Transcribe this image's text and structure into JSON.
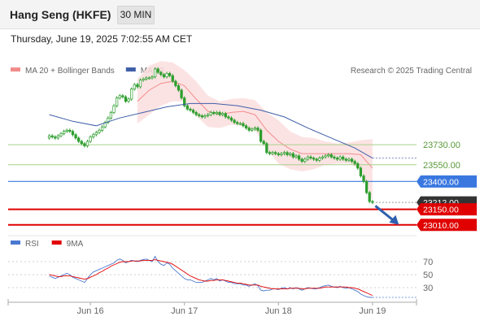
{
  "header": {
    "title": "Hang Seng (HKFE)",
    "timeframe": "30 MIN"
  },
  "datetime": "Thursday, June 19, 2025 7:02:55 AM CET",
  "credit": "Research © 2025 Trading Central",
  "colors": {
    "bollinger": "#f28c8c",
    "bollinger_fill": "#fbdede",
    "ma50": "#3f5fa8",
    "support_green": "#a8d08a",
    "pivot_blue": "#3a78e0",
    "target_red": "#e00000",
    "last_price": "#333333",
    "rsi": "#4a78d0",
    "rsi_ma": "#e00000",
    "candle": "#2e9e2e"
  },
  "chart_data": [
    {
      "type": "candlestick",
      "title": "",
      "legend": [
        {
          "name": "MA 20 + Bollinger Bands",
          "color": "#f28c8c"
        },
        {
          "name": "MA 50",
          "color": "#3f5fa8"
        }
      ],
      "legend_position": "top-left",
      "x_ticks": [
        {
          "label": "Jun 16",
          "t": 14
        },
        {
          "label": "Jun 17",
          "t": 46
        },
        {
          "label": "Jun 18",
          "t": 78
        },
        {
          "label": "Jun 19",
          "t": 110
        }
      ],
      "t_range": [
        -14,
        125
      ],
      "y_range": [
        22950,
        24300
      ],
      "levels": [
        {
          "label": "23730.00",
          "value": 23730,
          "kind": "resistance"
        },
        {
          "label": "23550.00",
          "value": 23550,
          "kind": "resistance"
        },
        {
          "label": "23400.00",
          "value": 23400,
          "kind": "pivot"
        },
        {
          "label": "23212.00",
          "value": 23212,
          "kind": "last"
        },
        {
          "label": "23150.00",
          "value": 23150,
          "kind": "target"
        },
        {
          "label": "23010.00",
          "value": 23010,
          "kind": "target"
        }
      ],
      "close": [
        23810,
        23800,
        23790,
        23810,
        23830,
        23850,
        23860,
        23850,
        23820,
        23790,
        23760,
        23740,
        23720,
        23760,
        23800,
        23820,
        23840,
        23860,
        23890,
        23930,
        23970,
        24020,
        24080,
        24150,
        24170,
        24160,
        24120,
        24140,
        24230,
        24270,
        24250,
        24310,
        24320,
        24330,
        24330,
        24340,
        24410,
        24380,
        24360,
        24340,
        24370,
        24350,
        24300,
        24260,
        24220,
        24150,
        24080,
        24050,
        24040,
        24020,
        24000,
        23990,
        23980,
        23990,
        24000,
        24020,
        24010,
        24020,
        24000,
        24010,
        23980,
        23970,
        23950,
        23930,
        23920,
        23920,
        23900,
        23880,
        23860,
        23870,
        23880,
        23860,
        23760,
        23740,
        23660,
        23650,
        23660,
        23650,
        23640,
        23650,
        23660,
        23640,
        23650,
        23620,
        23630,
        23600,
        23580,
        23600,
        23620,
        23610,
        23600,
        23590,
        23610,
        23620,
        23630,
        23640,
        23620,
        23610,
        23600,
        23620,
        23600,
        23590,
        23600,
        23580,
        23560,
        23520,
        23450,
        23400,
        23300,
        23220,
        23212
      ],
      "open": [
        23790,
        23810,
        23800,
        23790,
        23810,
        23830,
        23850,
        23860,
        23850,
        23820,
        23790,
        23760,
        23740,
        23720,
        23760,
        23800,
        23820,
        23840,
        23860,
        23890,
        23930,
        23970,
        24020,
        24080,
        24150,
        24170,
        24160,
        24120,
        24140,
        24230,
        24270,
        24250,
        24310,
        24320,
        24330,
        24330,
        24340,
        24410,
        24380,
        24360,
        24340,
        24370,
        24350,
        24300,
        24260,
        24220,
        24150,
        24080,
        24050,
        24040,
        24020,
        24000,
        23990,
        23980,
        23990,
        24000,
        24020,
        24010,
        24020,
        24000,
        24010,
        23980,
        23970,
        23950,
        23930,
        23920,
        23920,
        23900,
        23880,
        23860,
        23870,
        23880,
        23860,
        23760,
        23740,
        23660,
        23650,
        23660,
        23650,
        23640,
        23650,
        23660,
        23640,
        23650,
        23620,
        23630,
        23600,
        23580,
        23600,
        23620,
        23610,
        23600,
        23590,
        23610,
        23620,
        23630,
        23640,
        23620,
        23610,
        23600,
        23620,
        23600,
        23590,
        23600,
        23580,
        23560,
        23520,
        23450,
        23400,
        23300,
        23220
      ],
      "ma20_bollinger": {
        "t": [
          30,
          34,
          38,
          42,
          46,
          50,
          54,
          58,
          62,
          66,
          70,
          74,
          78,
          82,
          86,
          90,
          94,
          98,
          102,
          106,
          110
        ],
        "upper": [
          24320,
          24440,
          24480,
          24470,
          24400,
          24300,
          24170,
          24120,
          24140,
          24150,
          24130,
          24020,
          23950,
          23850,
          23800,
          23790,
          23760,
          23740,
          23750,
          23770,
          23780
        ],
        "lower": [
          23920,
          24000,
          24080,
          24120,
          24120,
          23990,
          23890,
          23880,
          23910,
          23900,
          23860,
          23690,
          23560,
          23510,
          23490,
          23510,
          23550,
          23560,
          23560,
          23510,
          23230
        ],
        "middle": [
          24120,
          24220,
          24280,
          24300,
          24260,
          24140,
          24030,
          24000,
          24020,
          24030,
          24000,
          23860,
          23760,
          23690,
          23650,
          23650,
          23650,
          23650,
          23650,
          23640,
          23520
        ]
      },
      "ma50": {
        "t": [
          0,
          8,
          16,
          24,
          32,
          40,
          48,
          56,
          64,
          72,
          80,
          88,
          96,
          104,
          110
        ],
        "values": [
          24000,
          23940,
          23900,
          23970,
          24020,
          24070,
          24100,
          24100,
          24080,
          24040,
          23980,
          23880,
          23790,
          23700,
          23610
        ]
      },
      "forecast_arrow": {
        "from": [
          111,
          23180
        ],
        "to": [
          119,
          23010
        ]
      }
    },
    {
      "type": "line",
      "title": "",
      "legend": [
        {
          "name": "RSI",
          "color": "#4a78d0"
        },
        {
          "name": "9MA",
          "color": "#e00000"
        }
      ],
      "y_ticks": [
        70,
        50,
        30
      ],
      "y_range": [
        10,
        85
      ],
      "t_range": [
        -14,
        125
      ],
      "rsi": [
        48,
        46,
        44,
        46,
        48,
        50,
        52,
        50,
        46,
        44,
        42,
        40,
        38,
        44,
        50,
        54,
        56,
        58,
        60,
        62,
        64,
        66,
        68,
        72,
        74,
        72,
        68,
        70,
        72,
        71,
        70,
        72,
        73,
        74,
        72,
        70,
        78,
        70,
        66,
        64,
        68,
        66,
        60,
        56,
        52,
        48,
        44,
        42,
        42,
        40,
        38,
        38,
        38,
        40,
        42,
        44,
        42,
        44,
        40,
        42,
        40,
        38,
        38,
        36,
        36,
        36,
        34,
        34,
        32,
        34,
        36,
        33,
        26,
        25,
        26,
        26,
        28,
        28,
        27,
        29,
        30,
        28,
        30,
        28,
        30,
        28,
        26,
        28,
        30,
        29,
        28,
        28,
        30,
        32,
        33,
        34,
        32,
        31,
        30,
        32,
        30,
        29,
        30,
        28,
        26,
        24,
        20,
        18,
        16,
        15,
        15
      ],
      "rsi_ma": [
        50,
        49,
        48,
        47,
        47,
        48,
        48,
        48,
        47,
        46,
        45,
        44,
        43,
        44,
        46,
        48,
        50,
        53,
        55,
        58,
        60,
        63,
        65,
        67,
        69,
        70,
        70,
        70,
        71,
        71,
        71,
        71,
        72,
        72,
        72,
        72,
        73,
        72,
        71,
        70,
        69,
        68,
        66,
        63,
        60,
        57,
        54,
        51,
        48,
        46,
        44,
        42,
        41,
        40,
        40,
        41,
        41,
        42,
        42,
        42,
        41,
        40,
        39,
        38,
        37,
        37,
        36,
        35,
        34,
        34,
        34,
        34,
        32,
        31,
        30,
        29,
        28,
        28,
        28,
        28,
        28,
        28,
        29,
        29,
        29,
        29,
        28,
        28,
        29,
        29,
        29,
        29,
        29,
        30,
        31,
        31,
        31,
        31,
        31,
        31,
        31,
        31,
        30,
        30,
        29,
        28,
        26,
        24,
        22,
        20,
        18
      ]
    }
  ]
}
